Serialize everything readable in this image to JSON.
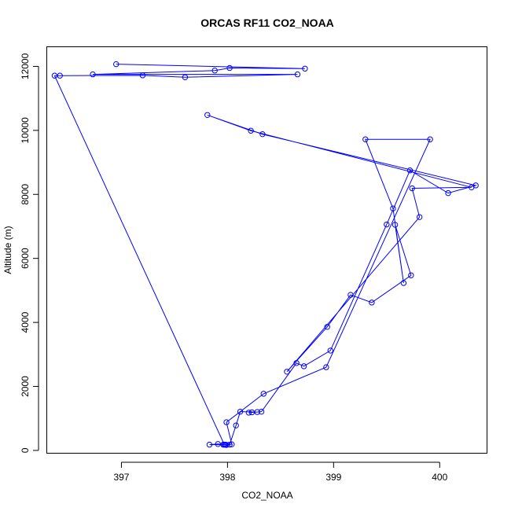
{
  "chart_data": {
    "type": "line",
    "title": "ORCAS RF11 CO2_NOAA",
    "xlabel": "CO2_NOAA",
    "ylabel": "Altitude (m)",
    "xlim": [
      396.3,
      400.45
    ],
    "ylim": [
      -100,
      12600
    ],
    "xticks": [
      397,
      398,
      399,
      400
    ],
    "yticks": [
      0,
      2000,
      4000,
      6000,
      8000,
      10000,
      12000
    ],
    "grid": false,
    "series": [
      {
        "color": "#0000ff",
        "marker": "open-circle",
        "x": [
          396.95,
          398.73,
          398.02,
          397.88,
          396.73,
          398.66,
          397.6,
          397.2,
          396.42,
          396.37,
          397.97,
          397.91,
          397.83,
          397.96,
          398.04,
          397.99,
          398.34,
          398.93,
          399.91,
          399.3,
          399.56,
          399.66,
          399.58,
          399.73,
          399.36,
          399.16,
          398.94,
          398.56,
          399.81,
          399.74,
          400.3,
          398.22,
          397.81,
          398.33,
          400.34,
          400.08,
          399.72,
          399.5,
          398.97,
          398.72,
          398.65,
          398.32,
          398.2,
          398.23,
          398.28,
          398.12,
          398.08,
          398.02,
          397.99,
          397.98
        ],
        "y": [
          12070,
          11930,
          11950,
          11870,
          11750,
          11750,
          11660,
          11720,
          11710,
          11710,
          180,
          200,
          180,
          180,
          190,
          880,
          1770,
          2600,
          9720,
          9720,
          7560,
          5230,
          7050,
          5470,
          4620,
          4860,
          3860,
          2460,
          7290,
          8190,
          8220,
          9990,
          10480,
          9880,
          8280,
          8040,
          8750,
          7060,
          3120,
          2630,
          2730,
          1210,
          1180,
          1190,
          1200,
          1210,
          780,
          180,
          170,
          180
        ]
      }
    ]
  }
}
